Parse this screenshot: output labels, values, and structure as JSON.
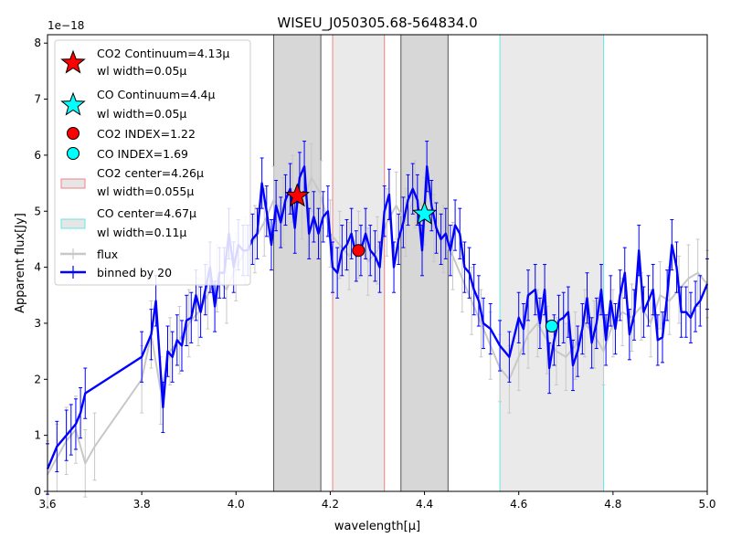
{
  "chart_data": {
    "type": "line",
    "title": "WISEU_J050305.68-564834.0",
    "xlabel": "wavelength[μ]",
    "ylabel": "Apparent flux[Jy]",
    "y_offset_label": "1e−18",
    "xlim": [
      3.6,
      5.0
    ],
    "ylim": [
      0,
      8.15
    ],
    "xticks": [
      "3.6",
      "3.8",
      "4.0",
      "4.2",
      "4.4",
      "4.6",
      "4.8",
      "5.0"
    ],
    "yticks": [
      "0",
      "1",
      "2",
      "3",
      "4",
      "5",
      "6",
      "7",
      "8"
    ],
    "grid": false,
    "legend_position": "upper-left",
    "shaded_regions": [
      {
        "x0": 4.08,
        "x1": 4.18,
        "fill": "#d0d0d0",
        "edge": "#555555"
      },
      {
        "x0": 4.205,
        "x1": 4.315,
        "fill": "#e6e6e6",
        "edge": "#f08080"
      },
      {
        "x0": 4.35,
        "x1": 4.45,
        "fill": "#d0d0d0",
        "edge": "#555555"
      },
      {
        "x0": 4.56,
        "x1": 4.78,
        "fill": "#e6e6e6",
        "edge": "#66e6e6"
      }
    ],
    "markers": [
      {
        "label": "CO2 Continuum=4.13μ",
        "label2": "wl width=0.05μ",
        "shape": "star",
        "color": "#ff0000",
        "x": 4.13,
        "y": 5.27
      },
      {
        "label": "CO Continuum=4.4μ",
        "label2": "wl width=0.05μ",
        "shape": "star",
        "color": "#00ffff",
        "x": 4.4,
        "y": 4.95
      },
      {
        "label": "CO2 INDEX=1.22",
        "shape": "circle",
        "color": "#ff0000",
        "x": 4.26,
        "y": 4.3
      },
      {
        "label": "CO  INDEX=1.69",
        "shape": "circle",
        "color": "#00ffff",
        "x": 4.67,
        "y": 2.95
      }
    ],
    "region_legend": [
      {
        "label": "CO2 center=4.26μ",
        "label2": "wl width=0.055μ",
        "fill": "#e6e6e6",
        "edge": "#f08080"
      },
      {
        "label": "CO center=4.67μ",
        "label2": "wl width=0.11μ",
        "fill": "#e6e6e6",
        "edge": "#66e6e6"
      }
    ],
    "series": [
      {
        "name": "flux",
        "color": "#c8c8c8",
        "x": [
          3.6,
          3.62,
          3.64,
          3.66,
          3.68,
          3.7,
          3.8,
          3.82,
          3.84,
          3.86,
          3.88,
          3.9,
          3.92,
          3.94,
          3.96,
          3.98,
          4.0,
          4.02,
          4.04,
          4.06,
          4.08,
          4.1,
          4.12,
          4.14,
          4.16,
          4.18,
          4.2,
          4.22,
          4.24,
          4.26,
          4.28,
          4.3,
          4.32,
          4.34,
          4.36,
          4.38,
          4.4,
          4.42,
          4.44,
          4.46,
          4.48,
          4.5,
          4.52,
          4.54,
          4.56,
          4.58,
          4.6,
          4.62,
          4.64,
          4.66,
          4.68,
          4.7,
          4.72,
          4.74,
          4.76,
          4.78,
          4.8,
          4.82,
          4.84,
          4.86,
          4.88,
          4.9,
          4.92,
          4.94,
          4.96,
          4.98,
          5.0
        ],
        "y": [
          0.3,
          0.6,
          0.9,
          1.1,
          0.5,
          0.8,
          2.0,
          2.8,
          1.8,
          2.5,
          2.7,
          3.0,
          3.2,
          3.5,
          3.8,
          3.6,
          4.0,
          4.3,
          4.5,
          4.8,
          5.2,
          5.0,
          5.4,
          5.1,
          5.6,
          5.3,
          4.6,
          4.4,
          4.2,
          4.4,
          4.1,
          4.3,
          4.8,
          5.1,
          4.8,
          5.3,
          5.0,
          4.7,
          4.5,
          4.2,
          3.8,
          3.4,
          3.0,
          2.6,
          2.2,
          2.0,
          2.4,
          2.8,
          3.0,
          2.7,
          2.5,
          2.4,
          2.6,
          3.0,
          2.8,
          2.5,
          3.0,
          3.2,
          3.1,
          3.3,
          3.0,
          3.5,
          3.4,
          3.6,
          3.8,
          3.9,
          3.7
        ],
        "yerr": 0.6
      },
      {
        "name": "binned by 20",
        "color": "#0000ff",
        "x": [
          3.6,
          3.62,
          3.64,
          3.65,
          3.66,
          3.67,
          3.68,
          3.8,
          3.82,
          3.83,
          3.845,
          3.855,
          3.865,
          3.875,
          3.885,
          3.895,
          3.905,
          3.915,
          3.925,
          3.935,
          3.945,
          3.955,
          3.965,
          3.975,
          3.985,
          3.995,
          4.005,
          4.015,
          4.025,
          4.035,
          4.045,
          4.055,
          4.065,
          4.075,
          4.085,
          4.095,
          4.105,
          4.115,
          4.125,
          4.135,
          4.145,
          4.155,
          4.165,
          4.175,
          4.185,
          4.195,
          4.205,
          4.215,
          4.225,
          4.235,
          4.245,
          4.255,
          4.265,
          4.275,
          4.285,
          4.295,
          4.305,
          4.315,
          4.325,
          4.335,
          4.345,
          4.355,
          4.365,
          4.375,
          4.385,
          4.395,
          4.405,
          4.415,
          4.425,
          4.435,
          4.445,
          4.455,
          4.465,
          4.475,
          4.485,
          4.495,
          4.505,
          4.515,
          4.525,
          4.54,
          4.56,
          4.58,
          4.6,
          4.61,
          4.62,
          4.635,
          4.645,
          4.655,
          4.665,
          4.675,
          4.685,
          4.695,
          4.705,
          4.715,
          4.725,
          4.735,
          4.745,
          4.755,
          4.765,
          4.775,
          4.785,
          4.795,
          4.805,
          4.815,
          4.825,
          4.835,
          4.845,
          4.855,
          4.865,
          4.875,
          4.885,
          4.895,
          4.905,
          4.915,
          4.925,
          4.935,
          4.945,
          4.955,
          4.965,
          4.975,
          4.985,
          5.0
        ],
        "y": [
          0.4,
          0.8,
          1.0,
          1.1,
          1.2,
          1.4,
          1.75,
          2.4,
          2.8,
          3.4,
          1.5,
          2.5,
          2.4,
          2.7,
          2.6,
          3.05,
          3.1,
          3.5,
          3.2,
          3.6,
          4.0,
          3.3,
          3.9,
          3.9,
          4.6,
          4.0,
          4.4,
          4.3,
          4.3,
          4.5,
          4.6,
          5.5,
          5.0,
          4.4,
          5.1,
          4.8,
          5.2,
          5.4,
          4.7,
          5.6,
          5.8,
          4.6,
          4.9,
          4.6,
          4.9,
          5.0,
          4.0,
          3.9,
          4.3,
          4.4,
          4.6,
          4.2,
          4.3,
          4.6,
          4.3,
          4.2,
          4.0,
          5.0,
          5.3,
          4.0,
          4.5,
          4.8,
          5.2,
          5.4,
          5.2,
          4.3,
          5.8,
          5.1,
          4.7,
          4.5,
          4.6,
          4.3,
          4.75,
          4.6,
          4.0,
          3.9,
          3.6,
          3.4,
          3.0,
          2.9,
          2.6,
          2.4,
          3.1,
          2.9,
          3.5,
          3.6,
          3.0,
          3.6,
          2.2,
          2.7,
          3.05,
          3.1,
          3.2,
          2.25,
          2.5,
          2.9,
          3.45,
          2.65,
          3.0,
          3.6,
          2.7,
          3.4,
          2.9,
          3.5,
          3.9,
          2.8,
          3.15,
          4.3,
          3.2,
          3.4,
          3.6,
          2.7,
          2.75,
          3.5,
          4.4,
          4.0,
          3.2,
          3.2,
          3.1,
          3.3,
          3.4,
          3.7
        ],
        "yerr": 0.45
      }
    ]
  }
}
